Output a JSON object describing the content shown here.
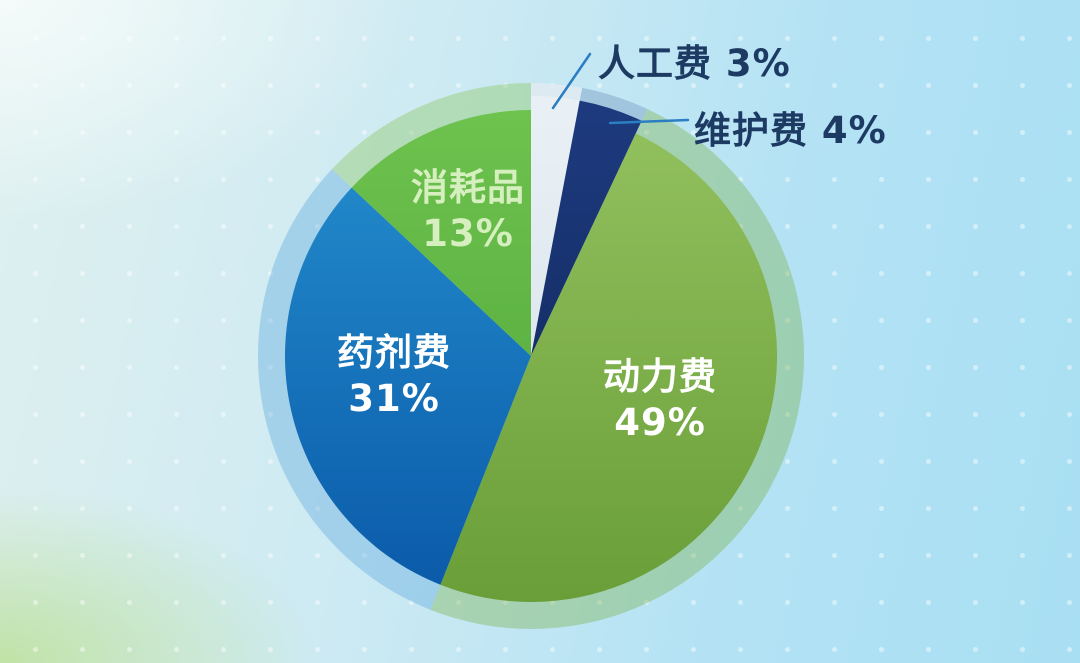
{
  "chart_data": {
    "type": "pie",
    "title": "",
    "unit": "%",
    "start_angle_deg_clockwise_from_top": 0,
    "slices": [
      {
        "id": "labor",
        "label": "人工费",
        "value": 3,
        "color_top": "#e9f0f5",
        "color_bottom": "#d3dfe8",
        "halo_color": "rgba(225,234,241,0.85)",
        "exploded": true
      },
      {
        "id": "maintenance",
        "label": "维护费",
        "value": 4,
        "color_top": "#1d3a7e",
        "color_bottom": "#0e2453",
        "halo_color": "rgba(80,110,170,0.28)",
        "exploded": true
      },
      {
        "id": "power",
        "label": "动力费",
        "value": 49,
        "color_top": "#93c15f",
        "color_bottom": "#699e38",
        "halo_color": "rgba(120,175,70,0.38)",
        "exploded": false
      },
      {
        "id": "chemical",
        "label": "药剂费",
        "value": 31,
        "color_top": "#2590cf",
        "color_bottom": "#0a59a8",
        "halo_color": "rgba(80,160,220,0.35)",
        "exploded": false
      },
      {
        "id": "consumables",
        "label": "消耗品",
        "value": 13,
        "color_top": "#6ec24e",
        "color_bottom": "#4ca338",
        "halo_color": "rgba(140,200,100,0.42)",
        "exploded": false
      }
    ],
    "leader_line_color": "#2b7ec2",
    "legend_position": "none"
  },
  "callouts": {
    "labor": {
      "text": "人工费 3%"
    },
    "maintenance": {
      "text": "维护费 4%"
    }
  },
  "inside_labels": {
    "consumables": {
      "line1": "消耗品",
      "line2": "13%"
    },
    "chemical": {
      "line1": "药剂费",
      "line2": "31%"
    },
    "power": {
      "line1": "动力费",
      "line2": "49%"
    }
  }
}
